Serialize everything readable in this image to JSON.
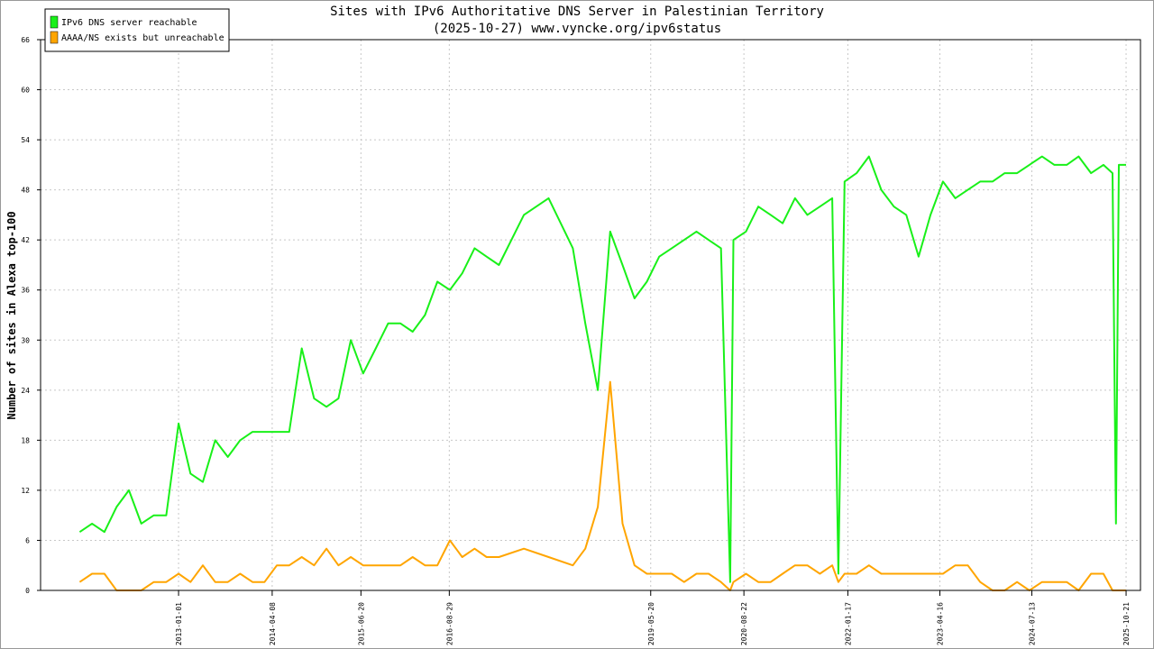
{
  "chart_data": {
    "type": "line",
    "title": "Sites with IPv6 Authoritative DNS Server in Palestinian Territory",
    "subtitle": "(2025-10-27) www.vyncke.org/ipv6status",
    "y_label": "Number of sites in Alexa top-100",
    "x": [
      "2011-09-01",
      "2011-11-01",
      "2012-01-01",
      "2012-03-01",
      "2012-05-01",
      "2012-07-01",
      "2012-09-01",
      "2012-11-01",
      "2013-01-01",
      "2013-03-01",
      "2013-05-01",
      "2013-07-01",
      "2013-09-01",
      "2013-11-01",
      "2014-01-01",
      "2014-03-01",
      "2014-05-01",
      "2014-07-01",
      "2014-09-01",
      "2014-11-01",
      "2015-01-01",
      "2015-03-01",
      "2015-05-01",
      "2015-07-01",
      "2015-09-01",
      "2015-11-01",
      "2016-01-01",
      "2016-03-01",
      "2016-05-01",
      "2016-07-01",
      "2016-09-01",
      "2016-11-01",
      "2017-01-01",
      "2017-03-01",
      "2017-05-01",
      "2017-09-01",
      "2018-01-01",
      "2018-05-01",
      "2018-07-01",
      "2018-09-01",
      "2018-11-01",
      "2019-01-01",
      "2019-03-01",
      "2019-05-01",
      "2019-07-01",
      "2019-09-01",
      "2019-11-01",
      "2020-01-01",
      "2020-03-01",
      "2020-05-01",
      "2020-06-15",
      "2020-07-01",
      "2020-09-01",
      "2020-11-01",
      "2021-01-01",
      "2021-03-01",
      "2021-05-01",
      "2021-07-01",
      "2021-09-01",
      "2021-11-01",
      "2021-12-01",
      "2022-01-01",
      "2022-03-01",
      "2022-05-01",
      "2022-07-01",
      "2022-09-01",
      "2022-11-01",
      "2023-01-01",
      "2023-03-01",
      "2023-05-01",
      "2023-07-01",
      "2023-09-01",
      "2023-11-01",
      "2024-01-01",
      "2024-03-01",
      "2024-05-01",
      "2024-07-01",
      "2024-09-01",
      "2024-11-01",
      "2025-01-01",
      "2025-03-01",
      "2025-05-01",
      "2025-07-01",
      "2025-08-15",
      "2025-09-01",
      "2025-09-15",
      "2025-10-21"
    ],
    "series": [
      {
        "name": "IPv6 DNS server reachable",
        "color": "#19f019",
        "values": [
          7,
          8,
          7,
          10,
          12,
          8,
          9,
          9,
          20,
          14,
          13,
          18,
          16,
          18,
          19,
          19,
          19,
          19,
          29,
          23,
          22,
          23,
          30,
          26,
          29,
          32,
          32,
          31,
          33,
          37,
          36,
          38,
          41,
          40,
          39,
          45,
          47,
          41,
          32,
          24,
          43,
          39,
          35,
          37,
          40,
          41,
          42,
          43,
          42,
          41,
          1,
          42,
          43,
          46,
          45,
          44,
          47,
          45,
          46,
          47,
          2,
          49,
          50,
          52,
          48,
          46,
          45,
          40,
          45,
          49,
          47,
          48,
          49,
          49,
          50,
          50,
          51,
          52,
          51,
          51,
          52,
          50,
          51,
          50,
          8,
          51,
          51
        ]
      },
      {
        "name": "AAAA/NS exists but unreachable",
        "color": "#ffa500",
        "values": [
          1,
          2,
          2,
          0,
          0,
          0,
          1,
          1,
          2,
          1,
          3,
          1,
          1,
          2,
          1,
          1,
          3,
          3,
          4,
          3,
          5,
          3,
          4,
          3,
          3,
          3,
          3,
          4,
          3,
          3,
          6,
          4,
          5,
          4,
          4,
          5,
          4,
          3,
          5,
          10,
          25,
          8,
          3,
          2,
          2,
          2,
          1,
          2,
          2,
          1,
          0,
          1,
          2,
          1,
          1,
          2,
          3,
          3,
          2,
          3,
          1,
          2,
          2,
          3,
          2,
          2,
          2,
          2,
          2,
          2,
          3,
          3,
          1,
          0,
          0,
          1,
          0,
          1,
          1,
          1,
          0,
          2,
          2,
          0,
          0,
          0,
          0
        ]
      }
    ],
    "xlim": [
      "2011-02-20",
      "2025-12-31"
    ],
    "xticks": [
      "2013-01-01",
      "2014-04-08",
      "2015-06-20",
      "2016-08-29",
      "2019-05-20",
      "2020-08-22",
      "2022-01-17",
      "2023-04-16",
      "2024-07-13",
      "2025-10-21"
    ],
    "ylim": [
      0,
      66
    ],
    "yticks": [
      0,
      6,
      12,
      18,
      24,
      30,
      36,
      42,
      48,
      54,
      60,
      66
    ],
    "grid": true,
    "legend": "upper left"
  }
}
